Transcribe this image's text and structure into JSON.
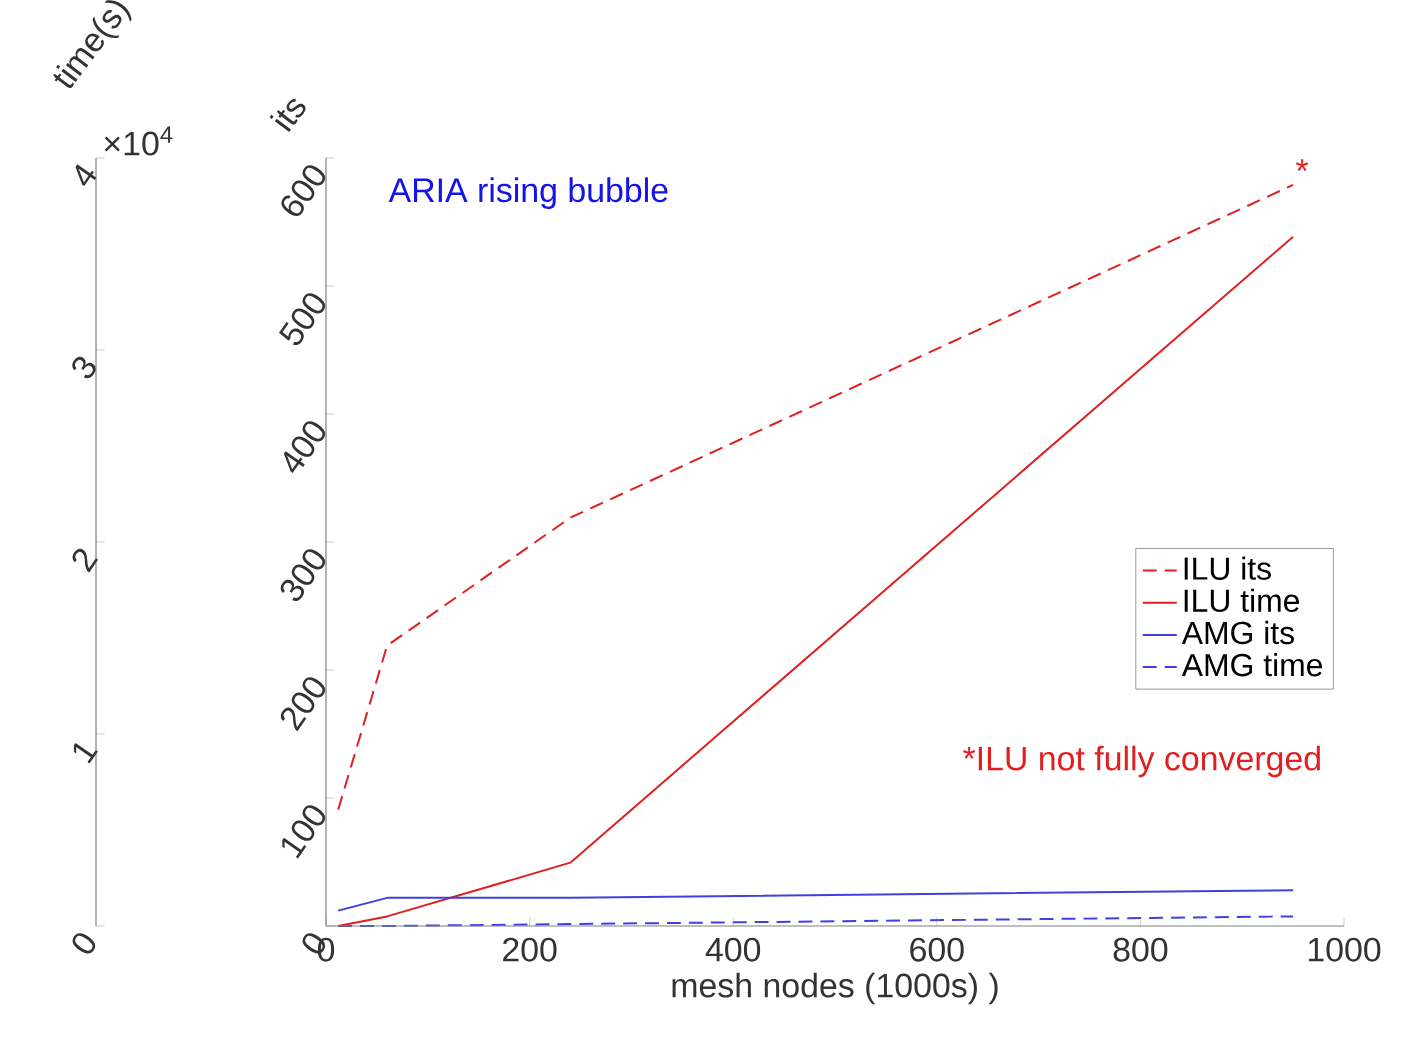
{
  "chart_data": {
    "type": "line",
    "title": "ARIA rising bubble",
    "xlabel": "mesh nodes (1000s) )",
    "ylabel": "its",
    "y2label": "time(s)",
    "x": [
      12,
      60,
      240,
      950
    ],
    "series": [
      {
        "name": "ILU its",
        "color": "#e02020",
        "line_style": "dashed",
        "values": [
          91,
          219,
          319,
          579
        ]
      },
      {
        "name": "ILU time",
        "color": "#e02020",
        "line_style": "solid",
        "axis": "y2",
        "values": [
          0,
          0.05,
          0.33,
          3.59
        ]
      },
      {
        "name": "AMG its",
        "color": "#4040e0",
        "line_style": "solid",
        "values": [
          12,
          22,
          22,
          28
        ]
      },
      {
        "name": "AMG time",
        "color": "#4040e0",
        "line_style": "dashed",
        "axis": "y2",
        "values": [
          0,
          0,
          0.01,
          0.05
        ]
      }
    ],
    "xlim": [
      0,
      1000
    ],
    "xticks": [
      0,
      200,
      400,
      600,
      800,
      1000
    ],
    "ylim": [
      0,
      600
    ],
    "yticks": [
      0,
      100,
      200,
      300,
      400,
      500,
      600
    ],
    "y2lim": [
      0,
      4
    ],
    "y2ticks": [
      0,
      1,
      2,
      3,
      4
    ],
    "annotations": [
      {
        "text": "*",
        "x": 950,
        "y": 579
      },
      "*ILU not fully converged",
      "×10$^{4}$"
    ],
    "legend": "right",
    "marker": "none",
    "grid": false
  }
}
